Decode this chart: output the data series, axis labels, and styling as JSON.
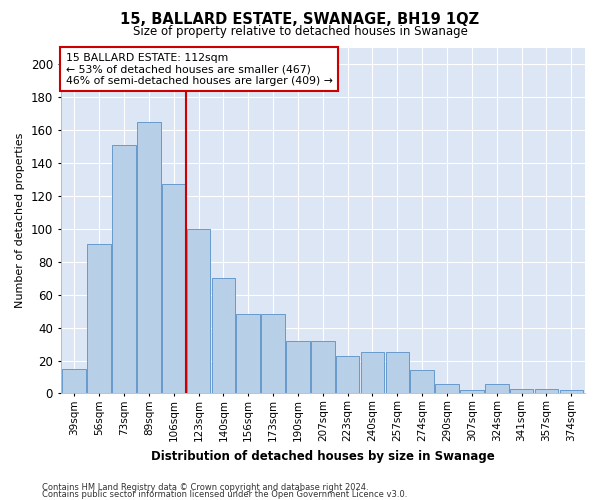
{
  "title": "15, BALLARD ESTATE, SWANAGE, BH19 1QZ",
  "subtitle": "Size of property relative to detached houses in Swanage",
  "xlabel": "Distribution of detached houses by size in Swanage",
  "ylabel": "Number of detached properties",
  "categories": [
    "39sqm",
    "56sqm",
    "73sqm",
    "89sqm",
    "106sqm",
    "123sqm",
    "140sqm",
    "156sqm",
    "173sqm",
    "190sqm",
    "207sqm",
    "223sqm",
    "240sqm",
    "257sqm",
    "274sqm",
    "290sqm",
    "307sqm",
    "324sqm",
    "341sqm",
    "357sqm",
    "374sqm"
  ],
  "values": [
    15,
    91,
    151,
    165,
    127,
    100,
    70,
    48,
    48,
    32,
    32,
    23,
    25,
    25,
    14,
    6,
    2,
    6,
    3,
    3,
    2
  ],
  "bar_color": "#b8cfe8",
  "bar_edge_color": "#6699cc",
  "background_color": "#dce6f5",
  "grid_color": "#ffffff",
  "annotation_text1": "15 BALLARD ESTATE: 112sqm",
  "annotation_text2": "← 53% of detached houses are smaller (467)",
  "annotation_text3": "46% of semi-detached houses are larger (409) →",
  "annotation_box_color": "#ffffff",
  "annotation_border_color": "#cc0000",
  "property_line_color": "#cc0000",
  "ylim": [
    0,
    210
  ],
  "yticks": [
    0,
    20,
    40,
    60,
    80,
    100,
    120,
    140,
    160,
    180,
    200
  ],
  "footnote1": "Contains HM Land Registry data © Crown copyright and database right 2024.",
  "footnote2": "Contains public sector information licensed under the Open Government Licence v3.0."
}
